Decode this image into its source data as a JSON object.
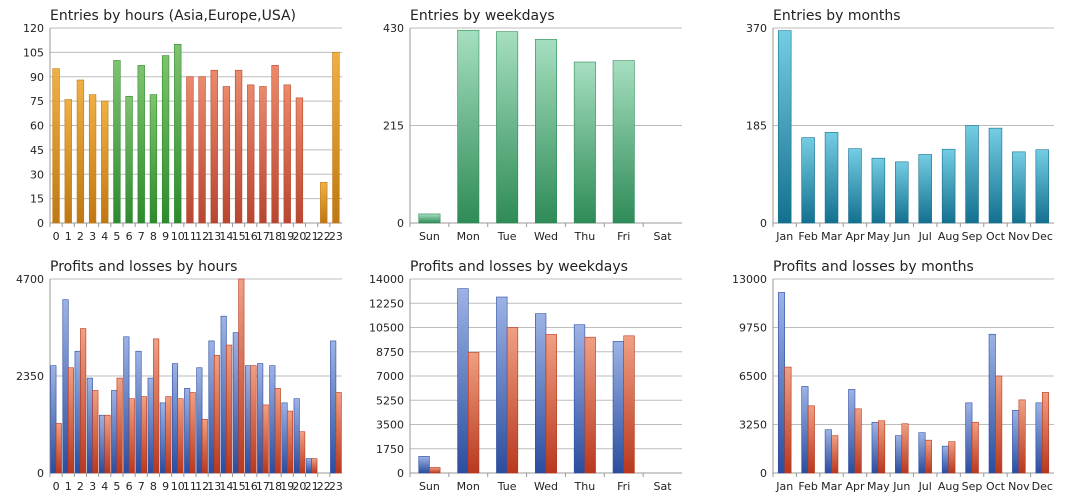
{
  "colors": {
    "hours_orange": "#f0b043",
    "hours_orange_dark": "#c07812",
    "hours_green": "#7ec46f",
    "hours_green_dark": "#2e8a2e",
    "hours_red": "#ec8a6a",
    "hours_red_dark": "#b84630",
    "weekday_green": "#a6dfc0",
    "weekday_green_dark": "#2e8b57",
    "month_teal": "#74cde3",
    "month_teal_dark": "#13708f",
    "profit_blue": "#9db3e6",
    "profit_blue_dark": "#2b4d9e",
    "loss_red": "#f0a083",
    "loss_red_dark": "#b8381e"
  },
  "chart_data": [
    {
      "id": "entries-hours",
      "type": "bar",
      "title": "Entries by hours (Asia,Europe,USA)",
      "categories": [
        "0",
        "1",
        "2",
        "3",
        "4",
        "5",
        "6",
        "7",
        "8",
        "9",
        "10",
        "11",
        "12",
        "13",
        "14",
        "15",
        "16",
        "17",
        "18",
        "19",
        "20",
        "21",
        "22",
        "23"
      ],
      "values": [
        95,
        76,
        88,
        79,
        75,
        100,
        78,
        97,
        79,
        103,
        110,
        90,
        90,
        94,
        84,
        94,
        85,
        84,
        97,
        85,
        77,
        0,
        25,
        105
      ],
      "bar_colors": [
        "orange",
        "orange",
        "orange",
        "orange",
        "orange",
        "green",
        "green",
        "green",
        "green",
        "green",
        "green",
        "red",
        "red",
        "red",
        "red",
        "red",
        "red",
        "red",
        "red",
        "red",
        "red",
        "orange",
        "orange",
        "orange"
      ],
      "yticks": [
        "0",
        "15",
        "30",
        "45",
        "60",
        "75",
        "90",
        "105",
        "120"
      ],
      "ylim": [
        0,
        120
      ]
    },
    {
      "id": "entries-weekdays",
      "type": "bar",
      "title": "Entries by weekdays",
      "categories": [
        "Sun",
        "Mon",
        "Tue",
        "Wed",
        "Thu",
        "Fri",
        "Sat"
      ],
      "values": [
        20,
        425,
        422,
        405,
        355,
        358,
        0
      ],
      "yticks": [
        "0",
        "215",
        "430"
      ],
      "ylim": [
        0,
        430
      ]
    },
    {
      "id": "entries-months",
      "type": "bar",
      "title": "Entries by months",
      "categories": [
        "Jan",
        "Feb",
        "Mar",
        "Apr",
        "May",
        "Jun",
        "Jul",
        "Aug",
        "Sep",
        "Oct",
        "Nov",
        "Dec"
      ],
      "values": [
        365,
        162,
        172,
        141,
        123,
        116,
        130,
        140,
        185,
        180,
        135,
        139
      ],
      "yticks": [
        "0",
        "185",
        "370"
      ],
      "ylim": [
        0,
        370
      ]
    },
    {
      "id": "pl-hours",
      "type": "bar",
      "title": "Profits and losses by hours",
      "categories": [
        "0",
        "1",
        "2",
        "3",
        "4",
        "5",
        "6",
        "7",
        "8",
        "9",
        "10",
        "11",
        "12",
        "13",
        "14",
        "15",
        "16",
        "17",
        "18",
        "19",
        "20",
        "21",
        "22",
        "23"
      ],
      "series": [
        {
          "name": "Profits",
          "values": [
            2600,
            4200,
            2950,
            2300,
            1400,
            2000,
            3300,
            2950,
            2300,
            1700,
            2650,
            2050,
            2550,
            3200,
            3800,
            3400,
            2600,
            2650,
            2600,
            1700,
            1800,
            350,
            0,
            3200
          ]
        },
        {
          "name": "Losses",
          "values": [
            1200,
            2550,
            3500,
            2000,
            1400,
            2300,
            1800,
            1850,
            3250,
            1850,
            1800,
            1950,
            1300,
            2850,
            3100,
            4700,
            2600,
            1650,
            2050,
            1500,
            1000,
            350,
            0,
            1950
          ]
        }
      ],
      "yticks": [
        "0",
        "2350",
        "4700"
      ],
      "ylim": [
        0,
        4700
      ]
    },
    {
      "id": "pl-weekdays",
      "type": "bar",
      "title": "Profits and losses by weekdays",
      "categories": [
        "Sun",
        "Mon",
        "Tue",
        "Wed",
        "Thu",
        "Fri",
        "Sat"
      ],
      "series": [
        {
          "name": "Profits",
          "values": [
            1200,
            13300,
            12700,
            11500,
            10700,
            9500,
            0
          ]
        },
        {
          "name": "Losses",
          "values": [
            400,
            8700,
            10500,
            10000,
            9800,
            9900,
            0
          ]
        }
      ],
      "yticks": [
        "0",
        "1750",
        "3500",
        "5250",
        "7000",
        "8750",
        "10500",
        "12250",
        "14000"
      ],
      "ylim": [
        0,
        14000
      ]
    },
    {
      "id": "pl-months",
      "type": "bar",
      "title": "Profits and losses by months",
      "categories": [
        "Jan",
        "Feb",
        "Mar",
        "Apr",
        "May",
        "Jun",
        "Jul",
        "Aug",
        "Sep",
        "Oct",
        "Nov",
        "Dec"
      ],
      "series": [
        {
          "name": "Profits",
          "values": [
            12100,
            5800,
            2900,
            5600,
            3400,
            2500,
            2700,
            1800,
            4700,
            9300,
            4200,
            4700
          ]
        },
        {
          "name": "Losses",
          "values": [
            7100,
            4500,
            2500,
            4300,
            3500,
            3300,
            2200,
            2100,
            3400,
            6500,
            4900,
            5400
          ]
        }
      ],
      "yticks": [
        "0",
        "3250",
        "6500",
        "9750",
        "13000"
      ],
      "ylim": [
        0,
        13000
      ]
    }
  ]
}
